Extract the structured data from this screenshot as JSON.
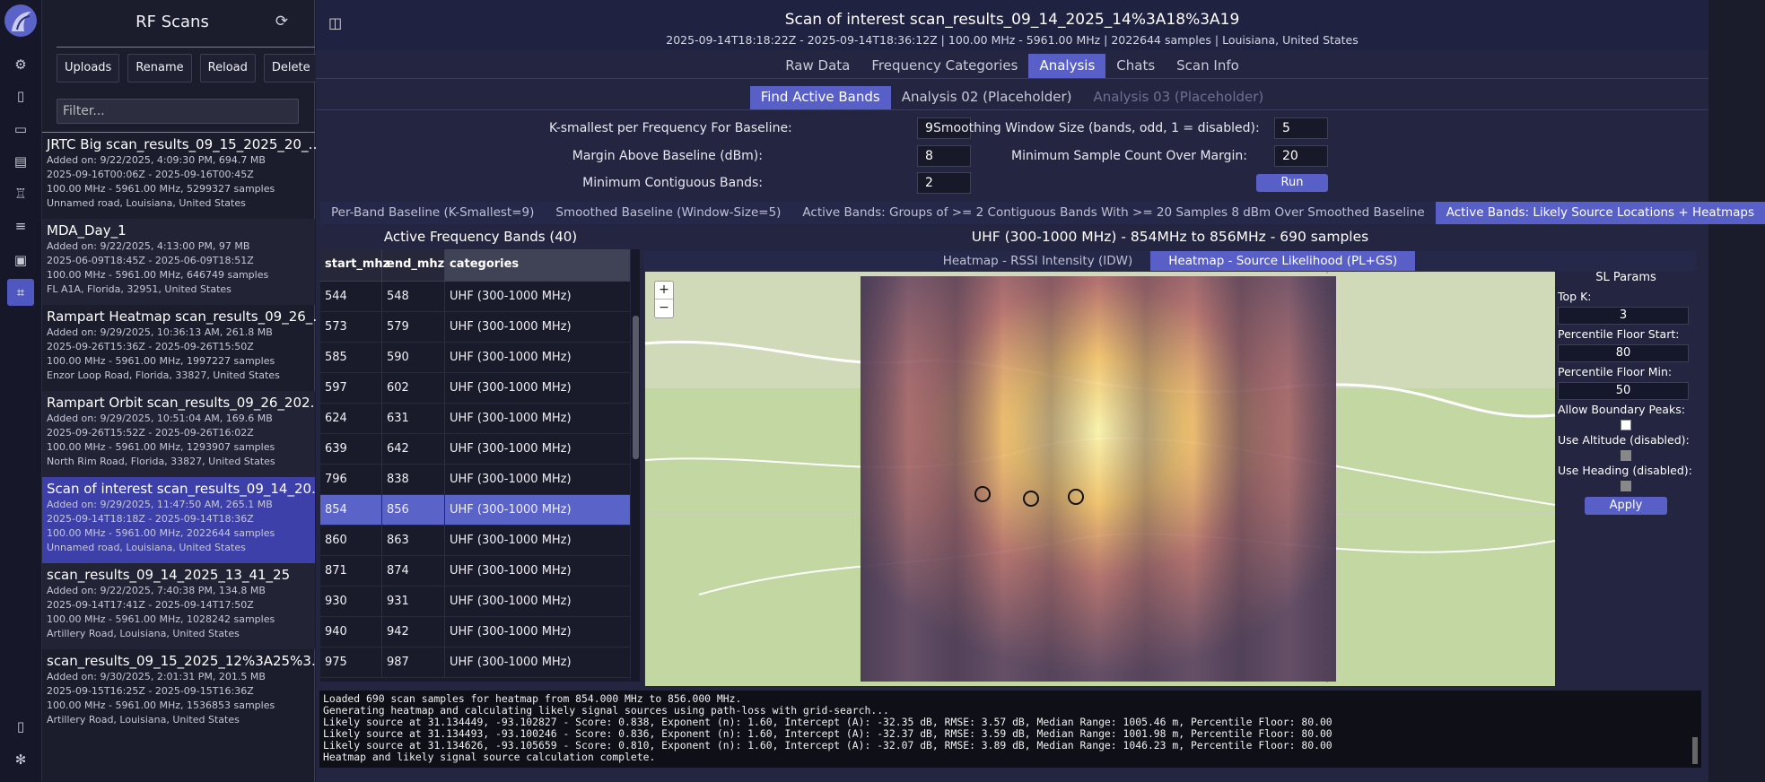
{
  "sidebar": {
    "title": "RF Scans",
    "buttons": {
      "uploads": "Uploads",
      "rename": "Rename",
      "reload": "Reload",
      "delete": "Delete"
    },
    "filter_placeholder": "Filter...",
    "scans": [
      {
        "name": "JRTC Big scan_results_09_15_2025_20_…",
        "added": "Added on: 9/22/2025, 4:09:30 PM, 694.7 MB",
        "range": "2025-09-16T00:06Z - 2025-09-16T00:45Z",
        "freq": "100.00 MHz - 5961.00 MHz, 5299327 samples",
        "loc": "Unnamed road, Louisiana, United States"
      },
      {
        "name": "MDA_Day_1",
        "added": "Added on: 9/22/2025, 4:13:00 PM, 97 MB",
        "range": "2025-06-09T18:45Z - 2025-06-09T18:51Z",
        "freq": "100.00 MHz - 5961.00 MHz, 646749 samples",
        "loc": "FL A1A, Florida, 32951, United States"
      },
      {
        "name": "Rampart Heatmap scan_results_09_26_…",
        "added": "Added on: 9/29/2025, 10:36:13 AM, 261.8 MB",
        "range": "2025-09-26T15:36Z - 2025-09-26T15:50Z",
        "freq": "100.00 MHz - 5961.00 MHz, 1997227 samples",
        "loc": "Enzor Loop Road, Florida, 33827, United States"
      },
      {
        "name": "Rampart Orbit scan_results_09_26_202…",
        "added": "Added on: 9/29/2025, 10:51:04 AM, 169.6 MB",
        "range": "2025-09-26T15:52Z - 2025-09-26T16:02Z",
        "freq": "100.00 MHz - 5961.00 MHz, 1293907 samples",
        "loc": "North Rim Road, Florida, 33827, United States"
      },
      {
        "name": "Scan of interest scan_results_09_14_20…",
        "added": "Added on: 9/29/2025, 11:47:50 AM, 265.1 MB",
        "range": "2025-09-14T18:18Z - 2025-09-14T18:36Z",
        "freq": "100.00 MHz - 5961.00 MHz, 2022644 samples",
        "loc": "Unnamed road, Louisiana, United States"
      },
      {
        "name": "scan_results_09_14_2025_13_41_25",
        "added": "Added on: 9/22/2025, 7:40:38 PM, 134.8 MB",
        "range": "2025-09-14T17:41Z - 2025-09-14T17:50Z",
        "freq": "100.00 MHz - 5961.00 MHz, 1028242 samples",
        "loc": "Artillery Road, Louisiana, United States"
      },
      {
        "name": "scan_results_09_15_2025_12%3A25%3…",
        "added": "Added on: 9/30/2025, 2:01:31 PM, 201.5 MB",
        "range": "2025-09-15T16:25Z - 2025-09-15T16:36Z",
        "freq": "100.00 MHz - 5961.00 MHz, 1536853 samples",
        "loc": "Artillery Road, Louisiana, United States"
      }
    ]
  },
  "header": {
    "title": "Scan of interest scan_results_09_14_2025_14%3A18%3A19",
    "subtitle": "2025-09-14T18:18:22Z - 2025-09-14T18:36:12Z | 100.00 MHz - 5961.00 MHz | 2022644 samples | Louisiana, United States"
  },
  "tabs": [
    "Raw Data",
    "Frequency Categories",
    "Analysis",
    "Chats",
    "Scan Info"
  ],
  "subtabs": [
    "Find Active Bands",
    "Analysis 02 (Placeholder)",
    "Analysis 03 (Placeholder)"
  ],
  "params": {
    "k_label": "K-smallest per Frequency For Baseline:",
    "k_value": "9",
    "margin_label": "Margin Above Baseline (dBm):",
    "margin_value": "8",
    "contig_label": "Minimum Contiguous Bands:",
    "contig_value": "2",
    "smooth_label": "Smoothing Window Size (bands, odd, 1 = disabled):",
    "smooth_value": "5",
    "count_label": "Minimum Sample Count Over Margin:",
    "count_value": "20",
    "run": "Run"
  },
  "result_tabs": [
    "Per-Band Baseline (K-Smallest=9)",
    "Smoothed Baseline (Window-Size=5)",
    "Active Bands: Groups of >= 2 Contiguous Bands With >= 20 Samples 8 dBm Over Smoothed Baseline",
    "Active Bands: Likely Source Locations + Heatmaps"
  ],
  "table": {
    "title": "Active Frequency Bands (40)",
    "headers": [
      "start_mhz",
      "end_mhz",
      "categories"
    ],
    "rows": [
      [
        "544",
        "548",
        "UHF (300-1000 MHz)"
      ],
      [
        "573",
        "579",
        "UHF (300-1000 MHz)"
      ],
      [
        "585",
        "590",
        "UHF (300-1000 MHz)"
      ],
      [
        "597",
        "602",
        "UHF (300-1000 MHz)"
      ],
      [
        "624",
        "631",
        "UHF (300-1000 MHz)"
      ],
      [
        "639",
        "642",
        "UHF (300-1000 MHz)"
      ],
      [
        "796",
        "838",
        "UHF (300-1000 MHz)"
      ],
      [
        "854",
        "856",
        "UHF (300-1000 MHz)"
      ],
      [
        "860",
        "863",
        "UHF (300-1000 MHz)"
      ],
      [
        "871",
        "874",
        "UHF (300-1000 MHz)"
      ],
      [
        "930",
        "931",
        "UHF (300-1000 MHz)"
      ],
      [
        "940",
        "942",
        "UHF (300-1000 MHz)"
      ],
      [
        "975",
        "987",
        "UHF (300-1000 MHz)"
      ]
    ],
    "selected_row": 7
  },
  "map_panel": {
    "title": "UHF (300-1000 MHz) - 854MHz to 856MHz - 690 samples",
    "tabs": [
      "Heatmap - RSSI Intensity (IDW)",
      "Heatmap - Source Likelihood (PL+GS)"
    ],
    "zoom_in": "+",
    "zoom_out": "−"
  },
  "sl_params": {
    "title": "SL Params",
    "topk_label": "Top K:",
    "topk": "3",
    "pfs_label": "Percentile Floor Start:",
    "pfs": "80",
    "pfm_label": "Percentile Floor Min:",
    "pfm": "50",
    "boundary_label": "Allow Boundary Peaks:",
    "altitude_label": "Use Altitude (disabled):",
    "heading_label": "Use Heading (disabled):",
    "apply": "Apply"
  },
  "log": [
    "Loaded 690 scan samples for heatmap from 854.000 MHz to 856.000 MHz.",
    "Generating heatmap and calculating likely signal sources using path-loss with grid-search...",
    "Likely source at 31.134449, -93.102827 - Score: 0.838, Exponent (n): 1.60, Intercept (A): -32.35 dB, RMSE: 3.57 dB, Median Range: 1005.46 m, Percentile Floor: 80.00",
    "Likely source at 31.134493, -93.100246 - Score: 0.836, Exponent (n): 1.60, Intercept (A): -32.37 dB, RMSE: 3.59 dB, Median Range: 1001.98 m, Percentile Floor: 80.00",
    "Likely source at 31.134626, -93.105659 - Score: 0.810, Exponent (n): 1.60, Intercept (A): -32.07 dB, RMSE: 3.89 dB, Median Range: 1046.23 m, Percentile Floor: 80.00",
    "Heatmap and likely signal source calculation complete."
  ],
  "colors": {
    "accent": "#5860c8",
    "selected_scan": "#3d40a8",
    "background": "#232541"
  }
}
